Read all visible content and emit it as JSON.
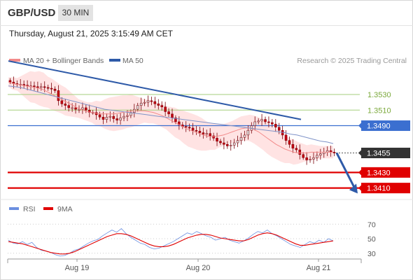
{
  "header": {
    "pair": "GBP/USD",
    "timeframe": "30 MIN"
  },
  "timestamp": "Thursday, August 21, 2025 3:15:49 AM CET",
  "legend": {
    "items": [
      {
        "label": "MA 20 + Bollinger Bands",
        "color": "#f28b8b"
      },
      {
        "label": "MA 50",
        "color": "#2e5aa8"
      }
    ],
    "credit": "Research © 2025 Trading Central"
  },
  "colors": {
    "candle_up": "#d8d8d8",
    "candle_down": "#c40010",
    "candle_wick": "#7a0008",
    "bollinger_fill": "#ffdede",
    "ma20": "#f28b8b",
    "ma50": "#7f93c8",
    "trendline": "#2e5aa8",
    "resistance_green": "#a6cf7d",
    "pivot_blue": "#3b6fd0",
    "support_red": "#e00000",
    "arrow": "#2e5aa8",
    "current_price_bg": "#333333",
    "rsi": "#6b8fe0",
    "rsi_9ma": "#e00000"
  },
  "chart_data": [
    {
      "type": "candlestick",
      "title": "GBP/USD 30 MIN",
      "ylim": [
        1.3398,
        1.3565
      ],
      "x_ticks": [
        "Aug 19",
        "Aug 20",
        "Aug 21"
      ],
      "levels": [
        {
          "label": "1.3530",
          "value": 1.353,
          "kind": "resistance"
        },
        {
          "label": "1.3510",
          "value": 1.351,
          "kind": "resistance"
        },
        {
          "label": "1.3490",
          "value": 1.349,
          "kind": "pivot"
        },
        {
          "label": "1.3430",
          "value": 1.343,
          "kind": "support"
        },
        {
          "label": "1.3410",
          "value": 1.341,
          "kind": "support"
        }
      ],
      "current_price": {
        "label": "1.3455",
        "value": 1.3455
      },
      "trendline": [
        1.3573,
        1.3498
      ],
      "close": [
        1.3546,
        1.3544,
        1.3543,
        1.3543,
        1.3542,
        1.3541,
        1.3541,
        1.354,
        1.3539,
        1.354,
        1.3539,
        1.3538,
        1.3537,
        1.3535,
        1.3522,
        1.3518,
        1.3516,
        1.3513,
        1.3513,
        1.3511,
        1.3511,
        1.3513,
        1.351,
        1.3507,
        1.3507,
        1.3504,
        1.3501,
        1.3498,
        1.3501,
        1.3502,
        1.3499,
        1.3497,
        1.35,
        1.3502,
        1.3503,
        1.3507,
        1.3511,
        1.3516,
        1.3519,
        1.352,
        1.3522,
        1.3521,
        1.3518,
        1.3516,
        1.3514,
        1.3508,
        1.3505,
        1.35,
        1.3495,
        1.3491,
        1.3489,
        1.3488,
        1.3487,
        1.3484,
        1.3483,
        1.3481,
        1.3479,
        1.348,
        1.3477,
        1.3474,
        1.347,
        1.3468,
        1.3466,
        1.3464,
        1.3465,
        1.3468,
        1.3471,
        1.3475,
        1.3478,
        1.3484,
        1.349,
        1.3495,
        1.3496,
        1.3498,
        1.3495,
        1.3494,
        1.3492,
        1.3488,
        1.3484,
        1.3478,
        1.3471,
        1.3466,
        1.3461,
        1.3459,
        1.3453,
        1.3449,
        1.3446,
        1.3447,
        1.3449,
        1.3452,
        1.3454,
        1.3456,
        1.3458,
        1.3456,
        1.3455
      ],
      "ma20": [
        1.3546,
        1.3544,
        1.3543,
        1.3542,
        1.3541,
        1.354,
        1.3539,
        1.3538,
        1.3536,
        1.3533,
        1.353,
        1.3527,
        1.3524,
        1.3521,
        1.3518,
        1.3515,
        1.3512,
        1.351,
        1.3508,
        1.3507,
        1.3506,
        1.3505,
        1.3505,
        1.3505,
        1.3505,
        1.3506,
        1.3507,
        1.3508,
        1.3509,
        1.3509,
        1.3509,
        1.3509,
        1.3508,
        1.3507,
        1.3505,
        1.3503,
        1.35,
        1.3497,
        1.3494,
        1.3491,
        1.3488,
        1.3485,
        1.3483,
        1.3481,
        1.3479,
        1.3477,
        1.3476,
        1.3476,
        1.3477,
        1.3478,
        1.348,
        1.3482,
        1.3484,
        1.3486,
        1.3487,
        1.3487,
        1.3485,
        1.3482,
        1.3478,
        1.3474,
        1.347,
        1.3466,
        1.3463,
        1.346,
        1.3458,
        1.3456,
        1.3455,
        1.3455,
        1.3455,
        1.3456,
        1.3456,
        1.3456,
        1.3456,
        1.3456,
        1.3456
      ],
      "ma50": [
        1.3541,
        1.354,
        1.3539,
        1.3537,
        1.3535,
        1.3533,
        1.3531,
        1.3529,
        1.3527,
        1.3525,
        1.3523,
        1.3521,
        1.3519,
        1.3517,
        1.3515,
        1.3513,
        1.3511,
        1.351,
        1.3509,
        1.3508,
        1.3507,
        1.3506,
        1.3505,
        1.3504,
        1.3503,
        1.3502,
        1.3501,
        1.35,
        1.3499,
        1.3498,
        1.3497,
        1.3496,
        1.3495,
        1.3494,
        1.3493,
        1.3492,
        1.3491,
        1.349,
        1.3489,
        1.3488,
        1.3487,
        1.3486,
        1.3485,
        1.3484,
        1.3483,
        1.3482,
        1.3481,
        1.3479,
        1.3478,
        1.3476,
        1.3474,
        1.3472,
        1.347,
        1.3469,
        1.3467
      ],
      "bollinger_width": [
        0.0006,
        0.0008,
        0.0012,
        0.0016,
        0.002,
        0.0022,
        0.0022,
        0.002,
        0.0019,
        0.0018,
        0.0016,
        0.0014,
        0.0012,
        0.0012,
        0.0013,
        0.0016,
        0.0019,
        0.0021,
        0.0022,
        0.0022,
        0.0021,
        0.0019,
        0.0017,
        0.0015,
        0.0014,
        0.0014,
        0.0015,
        0.0017,
        0.0019,
        0.0021,
        0.0022,
        0.0022,
        0.0021,
        0.0019,
        0.0017,
        0.0015,
        0.0014,
        0.0014,
        0.0015,
        0.0016,
        0.0017,
        0.0018,
        0.0019,
        0.002,
        0.002,
        0.0019,
        0.0018,
        0.0016,
        0.0014,
        0.0012,
        0.001,
        0.0009,
        0.0008,
        0.0008,
        0.0008
      ]
    },
    {
      "type": "line",
      "title": "RSI",
      "ylim": [
        24,
        78
      ],
      "y_ticks": [
        70,
        50,
        30
      ],
      "series": [
        {
          "name": "RSI",
          "values": [
            48,
            44,
            43,
            46,
            42,
            45,
            38,
            34,
            33,
            31,
            28,
            26,
            27,
            30,
            34,
            36,
            40,
            44,
            47,
            49,
            54,
            58,
            62,
            59,
            64,
            57,
            52,
            48,
            44,
            42,
            38,
            36,
            37,
            40,
            43,
            46,
            50,
            54,
            58,
            56,
            60,
            57,
            54,
            52,
            48,
            50,
            52,
            48,
            46,
            44,
            47,
            51,
            56,
            60,
            58,
            62,
            57,
            54,
            50,
            46,
            42,
            40,
            38,
            42,
            46,
            44,
            48,
            45,
            50,
            47
          ]
        },
        {
          "name": "9MA",
          "values": [
            46,
            45,
            44,
            43,
            41,
            39,
            37,
            35,
            33,
            31,
            30,
            29,
            29,
            30,
            32,
            35,
            38,
            41,
            44,
            47,
            50,
            53,
            55,
            57,
            57,
            56,
            54,
            51,
            48,
            45,
            42,
            40,
            39,
            39,
            40,
            42,
            45,
            48,
            51,
            53,
            55,
            56,
            56,
            55,
            53,
            51,
            50,
            49,
            48,
            47,
            47,
            49,
            52,
            55,
            57,
            58,
            57,
            55,
            52,
            49,
            46,
            43,
            41,
            41,
            42,
            43,
            44,
            45,
            46,
            47
          ]
        }
      ]
    }
  ]
}
